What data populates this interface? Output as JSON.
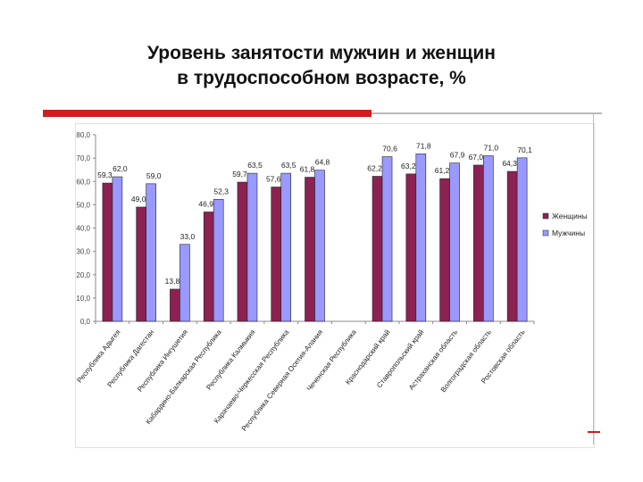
{
  "slide": {
    "title_line1": "Уровень занятости мужчин и женщин",
    "title_line2": "в трудоспособном возрасте, %"
  },
  "chart_data": {
    "type": "bar",
    "title": "",
    "xlabel": "",
    "ylabel": "",
    "ylim": [
      0,
      80
    ],
    "yticks": [
      "0,0",
      "10,0",
      "20,0",
      "30,0",
      "40,0",
      "50,0",
      "60,0",
      "70,0",
      "80,0"
    ],
    "grid": false,
    "legend_position": "right",
    "categories": [
      "Республика Адыгея",
      "Республика Дагестан",
      "Республика Ингушетия",
      "Кабардино-Балкарская Республика",
      "Республика Калмыкия",
      "Карачаево-Черкесская Республика",
      "Республика Северная Осетия-Алания",
      "Чеченская Республика",
      "Краснодарский край",
      "Ставропольский край",
      "Астраханская область",
      "Волгоградская область",
      "Ростовская область"
    ],
    "series": [
      {
        "name": "Женщины",
        "color": "#8b2252",
        "values": [
          59.3,
          49.0,
          13.8,
          46.9,
          59.7,
          57.6,
          61.8,
          null,
          62.2,
          63.2,
          61.2,
          67.0,
          64.3
        ],
        "labels": [
          "59,3",
          "49,0",
          "13,8",
          "46,9",
          "59,7",
          "57,6",
          "61,8",
          "",
          "62,2",
          "63,2",
          "61,2",
          "67,0",
          "64,3"
        ]
      },
      {
        "name": "Мужчины",
        "color": "#9999ff",
        "values": [
          62.0,
          59.0,
          33.0,
          52.3,
          63.5,
          63.5,
          64.8,
          null,
          70.6,
          71.8,
          67.9,
          71.0,
          70.1
        ],
        "labels": [
          "62,0",
          "59,0",
          "33,0",
          "52,3",
          "63,5",
          "63,5",
          "64,8",
          "",
          "70,6",
          "71,8",
          "67,9",
          "71,0",
          "70,1"
        ]
      }
    ]
  }
}
